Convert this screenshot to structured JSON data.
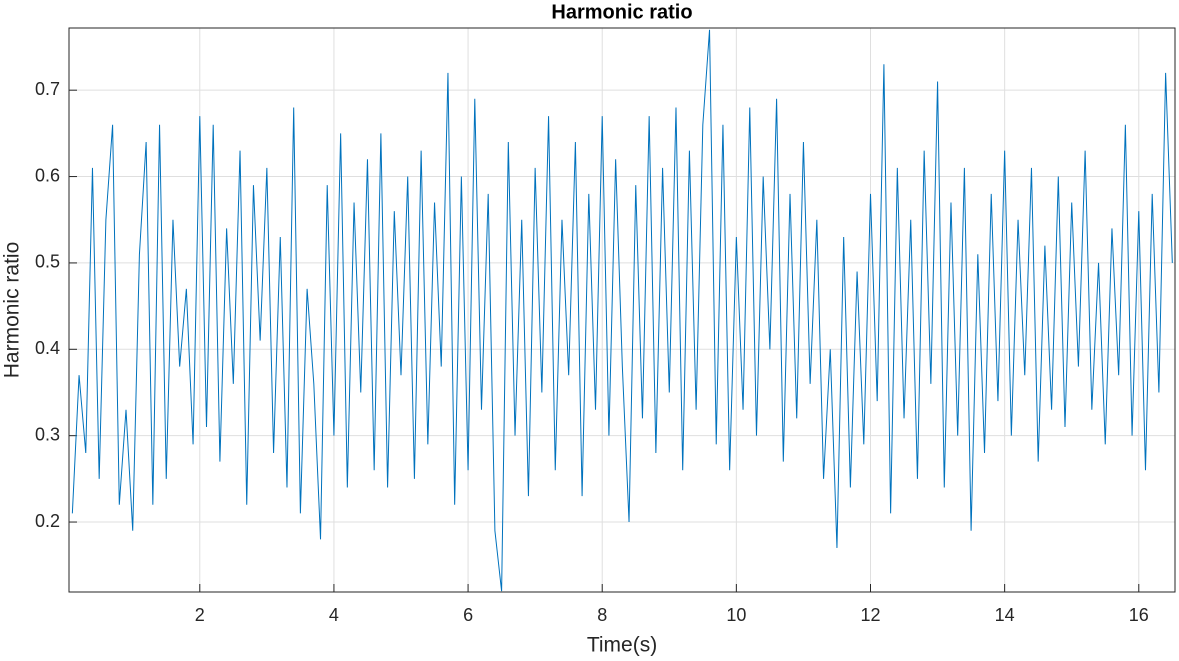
{
  "chart_data": {
    "type": "line",
    "title": "Harmonic ratio",
    "x_label": "Time(s)",
    "y_label": "Harmonic ratio",
    "x": [
      0.1,
      0.2,
      0.3,
      0.4,
      0.5,
      0.6,
      0.7,
      0.8,
      0.9,
      1.0,
      1.1,
      1.2,
      1.3,
      1.4,
      1.5,
      1.6,
      1.7,
      1.8,
      1.9,
      2.0,
      2.1,
      2.2,
      2.3,
      2.4,
      2.5,
      2.6,
      2.7,
      2.8,
      2.9,
      3.0,
      3.1,
      3.2,
      3.3,
      3.4,
      3.5,
      3.6,
      3.7,
      3.8,
      3.9,
      4.0,
      4.1,
      4.2,
      4.3,
      4.4,
      4.5,
      4.6,
      4.7,
      4.8,
      4.9,
      5.0,
      5.1,
      5.2,
      5.3,
      5.4,
      5.5,
      5.6,
      5.7,
      5.8,
      5.9,
      6.0,
      6.1,
      6.2,
      6.3,
      6.4,
      6.5,
      6.6,
      6.7,
      6.8,
      6.9,
      7.0,
      7.1,
      7.2,
      7.3,
      7.4,
      7.5,
      7.6,
      7.7,
      7.8,
      7.9,
      8.0,
      8.1,
      8.2,
      8.3,
      8.4,
      8.5,
      8.6,
      8.7,
      8.8,
      8.9,
      9.0,
      9.1,
      9.2,
      9.3,
      9.4,
      9.5,
      9.6,
      9.7,
      9.8,
      9.9,
      10.0,
      10.1,
      10.2,
      10.3,
      10.4,
      10.5,
      10.6,
      10.7,
      10.8,
      10.9,
      11.0,
      11.1,
      11.2,
      11.3,
      11.4,
      11.5,
      11.6,
      11.7,
      11.8,
      11.9,
      12.0,
      12.1,
      12.2,
      12.3,
      12.4,
      12.5,
      12.6,
      12.7,
      12.8,
      12.9,
      13.0,
      13.1,
      13.2,
      13.3,
      13.4,
      13.5,
      13.6,
      13.7,
      13.8,
      13.9,
      14.0,
      14.1,
      14.2,
      14.3,
      14.4,
      14.5,
      14.6,
      14.7,
      14.8,
      14.9,
      15.0,
      15.1,
      15.2,
      15.3,
      15.4,
      15.5,
      15.6,
      15.7,
      15.8,
      15.9,
      16.0,
      16.1,
      16.2,
      16.3,
      16.4,
      16.5
    ],
    "series": [
      {
        "color": "#0072bd",
        "values": [
          0.21,
          0.37,
          0.28,
          0.61,
          0.25,
          0.55,
          0.66,
          0.22,
          0.33,
          0.19,
          0.51,
          0.64,
          0.22,
          0.66,
          0.25,
          0.55,
          0.38,
          0.47,
          0.29,
          0.67,
          0.31,
          0.66,
          0.27,
          0.54,
          0.36,
          0.63,
          0.22,
          0.59,
          0.41,
          0.61,
          0.28,
          0.53,
          0.24,
          0.68,
          0.21,
          0.47,
          0.36,
          0.18,
          0.59,
          0.3,
          0.65,
          0.24,
          0.57,
          0.35,
          0.62,
          0.26,
          0.65,
          0.24,
          0.56,
          0.37,
          0.6,
          0.25,
          0.63,
          0.29,
          0.57,
          0.38,
          0.72,
          0.22,
          0.6,
          0.26,
          0.69,
          0.33,
          0.58,
          0.19,
          0.12,
          0.64,
          0.3,
          0.55,
          0.23,
          0.61,
          0.35,
          0.67,
          0.26,
          0.55,
          0.37,
          0.64,
          0.23,
          0.58,
          0.33,
          0.67,
          0.3,
          0.62,
          0.38,
          0.2,
          0.59,
          0.32,
          0.67,
          0.28,
          0.61,
          0.35,
          0.68,
          0.26,
          0.63,
          0.33,
          0.66,
          0.77,
          0.29,
          0.66,
          0.26,
          0.53,
          0.33,
          0.68,
          0.3,
          0.6,
          0.4,
          0.69,
          0.27,
          0.58,
          0.32,
          0.64,
          0.36,
          0.55,
          0.25,
          0.4,
          0.17,
          0.53,
          0.24,
          0.49,
          0.29,
          0.58,
          0.34,
          0.73,
          0.21,
          0.61,
          0.32,
          0.55,
          0.25,
          0.63,
          0.36,
          0.71,
          0.24,
          0.57,
          0.3,
          0.61,
          0.19,
          0.51,
          0.28,
          0.58,
          0.34,
          0.63,
          0.3,
          0.55,
          0.37,
          0.61,
          0.27,
          0.52,
          0.33,
          0.6,
          0.31,
          0.57,
          0.38,
          0.63,
          0.33,
          0.5,
          0.29,
          0.54,
          0.37,
          0.66,
          0.3,
          0.56,
          0.26,
          0.58,
          0.35,
          0.72,
          0.5
        ]
      }
    ],
    "xlim": [
      0.05,
      16.54
    ],
    "ylim": [
      0.119,
      0.772
    ],
    "xticks": [
      2,
      4,
      6,
      8,
      10,
      12,
      14,
      16
    ],
    "yticks": [
      0.2,
      0.3,
      0.4,
      0.5,
      0.6,
      0.7
    ],
    "grid": true
  }
}
